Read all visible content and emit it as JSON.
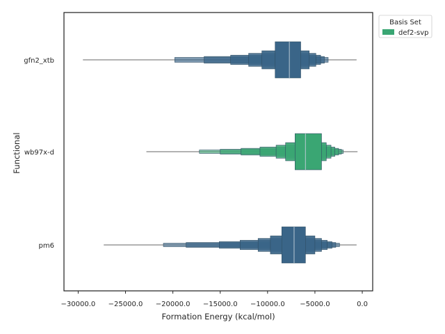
{
  "chart_data": {
    "type": "boxen",
    "title": "",
    "xlabel": "Formation Energy (kcal/mol)",
    "ylabel": "Functional",
    "xlim": [
      -31500,
      1100
    ],
    "xticks": [
      -30000,
      -25000,
      -20000,
      -15000,
      -10000,
      -5000,
      0
    ],
    "xtick_labels": [
      "−30000.0",
      "−25000.0",
      "−20000.0",
      "−15000.0",
      "−10000.0",
      "−5000.0",
      "0.0"
    ],
    "categories": [
      "gfn2_xtb",
      "wb97x-d",
      "pm6"
    ],
    "grid": false,
    "legend": {
      "title": "Basis Set",
      "entries": [
        {
          "label": "def2-svp",
          "color": "#3aa673"
        }
      ],
      "placement": "top-right, outside plot"
    },
    "series": [
      {
        "category": "gfn2_xtb",
        "color": "#3a6588",
        "median": -7700,
        "min": -29500,
        "max": -600,
        "boxes": [
          [
            -9200,
            -6500
          ],
          [
            -10600,
            -5600
          ],
          [
            -12000,
            -4900
          ],
          [
            -13900,
            -4400
          ],
          [
            -16700,
            -4000
          ],
          [
            -19800,
            -3600
          ]
        ]
      },
      {
        "category": "wb97x-d",
        "color": "#3aa673",
        "median": -6000,
        "min": -22800,
        "max": -500,
        "boxes": [
          [
            -7100,
            -4300
          ],
          [
            -8100,
            -3800
          ],
          [
            -9100,
            -3300
          ],
          [
            -10800,
            -2900
          ],
          [
            -12800,
            -2500
          ],
          [
            -15000,
            -2200
          ],
          [
            -17200,
            -2000
          ]
        ]
      },
      {
        "category": "pm6",
        "color": "#3a6588",
        "median": -7200,
        "min": -27300,
        "max": -600,
        "boxes": [
          [
            -8500,
            -6000
          ],
          [
            -9700,
            -5000
          ],
          [
            -11000,
            -4300
          ],
          [
            -12900,
            -3700
          ],
          [
            -15100,
            -3200
          ],
          [
            -18600,
            -2800
          ],
          [
            -21000,
            -2400
          ]
        ]
      }
    ]
  }
}
